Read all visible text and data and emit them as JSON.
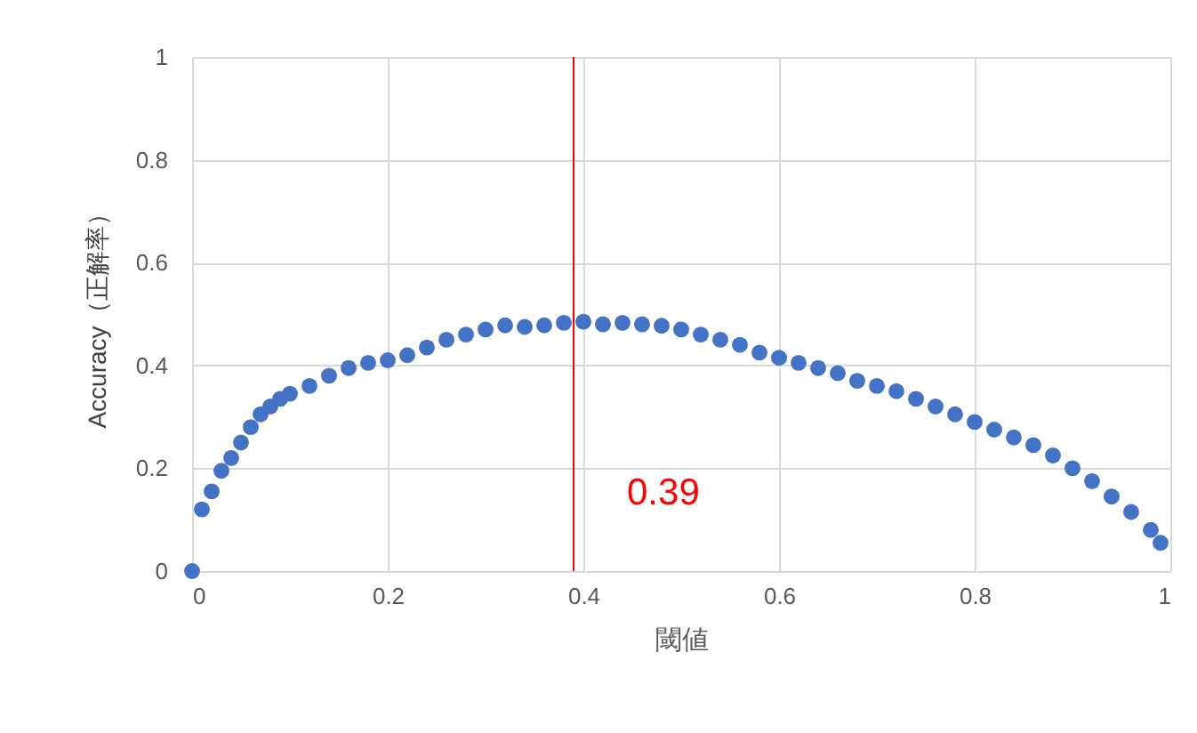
{
  "chart_data": {
    "type": "scatter",
    "xlabel": "閾値",
    "ylabel": "Accuracy（正解率）",
    "x": [
      0,
      0.01,
      0.02,
      0.03,
      0.04,
      0.05,
      0.06,
      0.07,
      0.08,
      0.09,
      0.1,
      0.12,
      0.14,
      0.16,
      0.18,
      0.2,
      0.22,
      0.24,
      0.26,
      0.28,
      0.3,
      0.32,
      0.34,
      0.36,
      0.38,
      0.4,
      0.42,
      0.44,
      0.46,
      0.48,
      0.5,
      0.52,
      0.54,
      0.56,
      0.58,
      0.6,
      0.62,
      0.64,
      0.66,
      0.68,
      0.7,
      0.72,
      0.74,
      0.76,
      0.78,
      0.8,
      0.82,
      0.84,
      0.86,
      0.88,
      0.9,
      0.92,
      0.94,
      0.96,
      0.98,
      0.99
    ],
    "series": [
      {
        "color": "#4472c4",
        "values": [
          0,
          0.12,
          0.155,
          0.195,
          0.22,
          0.25,
          0.28,
          0.305,
          0.32,
          0.335,
          0.345,
          0.36,
          0.38,
          0.395,
          0.405,
          0.41,
          0.42,
          0.435,
          0.45,
          0.46,
          0.47,
          0.478,
          0.475,
          0.478,
          0.483,
          0.485,
          0.48,
          0.483,
          0.48,
          0.477,
          0.47,
          0.46,
          0.45,
          0.44,
          0.425,
          0.415,
          0.405,
          0.395,
          0.385,
          0.37,
          0.36,
          0.35,
          0.335,
          0.32,
          0.305,
          0.29,
          0.275,
          0.26,
          0.245,
          0.225,
          0.2,
          0.175,
          0.145,
          0.115,
          0.08,
          0.055
        ]
      }
    ],
    "xlim": [
      0,
      1
    ],
    "xticks": [
      0,
      0.2,
      0.4,
      0.6,
      0.8,
      1
    ],
    "ylim": [
      0,
      1
    ],
    "yticks": [
      0,
      0.2,
      0.4,
      0.6,
      0.8,
      1
    ],
    "grid": true,
    "marker": "circle",
    "ref_lines": [
      {
        "axis": "x",
        "value": 0.39,
        "label": "0.39",
        "color": "#ff0000"
      }
    ]
  }
}
